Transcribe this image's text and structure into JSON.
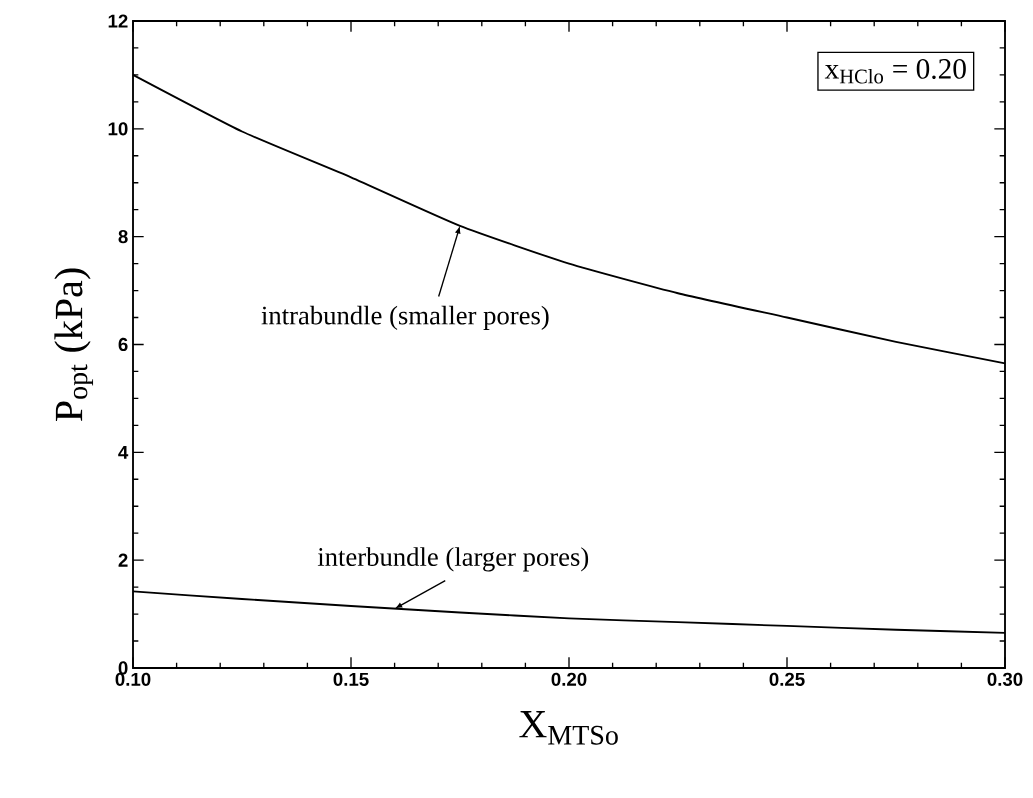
{
  "chart_data": {
    "type": "line",
    "xlabel": "X$_{MTSo}$",
    "ylabel": "P$_{opt}$ (kPa)",
    "x": [
      0.1,
      0.125,
      0.15,
      0.175,
      0.2,
      0.225,
      0.25,
      0.275,
      0.3
    ],
    "series": [
      {
        "color": "#000000",
        "values": [
          11.0,
          9.95,
          9.1,
          8.2,
          7.5,
          6.95,
          6.5,
          6.05,
          5.65
        ]
      },
      {
        "color": "#000000",
        "values": [
          1.42,
          1.28,
          1.15,
          1.03,
          0.92,
          0.85,
          0.78,
          0.71,
          0.65
        ]
      }
    ],
    "annotations": [
      {
        "text": "intrabundle (smaller pores)",
        "x": 0.175,
        "y": 8.2
      },
      {
        "text": "interbundle (larger pores)",
        "x": 0.16,
        "y": 1.1
      },
      "x$_{HClo}$ = 0.20"
    ],
    "xlim": [
      0.1,
      0.3
    ],
    "ylim": [
      0,
      12
    ],
    "xticks": [
      {
        "value": 0.1,
        "label": "0.10"
      },
      0.15,
      {
        "value": 0.2,
        "label": "0.20"
      },
      0.25,
      {
        "value": 0.3,
        "label": "0.30"
      }
    ],
    "yticks": [
      0,
      2,
      4,
      6,
      8,
      10,
      12
    ],
    "marker": "none",
    "line_style": "solid"
  }
}
